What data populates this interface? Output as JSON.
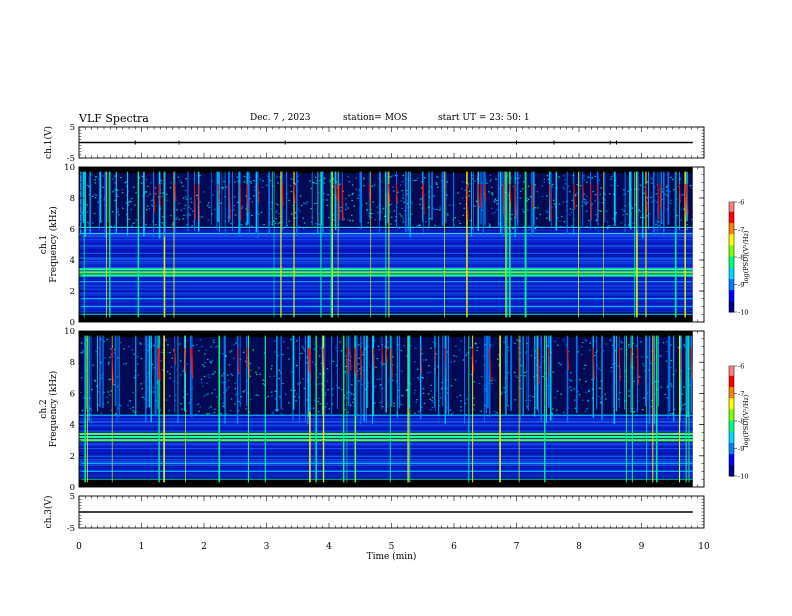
{
  "header": {
    "title": "VLF Spectra",
    "date": "Dec. 7 , 2023",
    "station": "station= MOS",
    "start": "start UT =  23: 50: 1"
  },
  "chart_data": [
    {
      "type": "line",
      "panel": "ch1-waveform",
      "ylabel": "ch.1(V)",
      "ylim": [
        -5,
        5
      ],
      "yticks": [
        5,
        -5
      ],
      "xlim": [
        0,
        10
      ],
      "series": [
        {
          "x": [
            0,
            9.82
          ],
          "y": [
            0,
            0
          ]
        }
      ]
    },
    {
      "type": "heatmap",
      "panel": "ch1-spectrogram",
      "ylabel": "ch.1\nFrequency (kHz)",
      "ylim": [
        0,
        10
      ],
      "yticks": [
        0,
        2,
        4,
        6,
        8,
        10
      ],
      "xlim": [
        0,
        10
      ],
      "data_end_x": 9.82,
      "colorbar": {
        "label": "log(PSD)(V²/Hz)",
        "range": [
          -10,
          -6
        ],
        "ticks": [
          -6,
          -7,
          -8,
          -9,
          -10
        ]
      },
      "bands_khz": [
        0.5,
        1.0,
        1.5,
        2.6,
        3.0,
        3.2,
        3.4,
        5.7,
        6.1
      ],
      "colors": [
        "#000010",
        "#00008b",
        "#0000ff",
        "#007fff",
        "#00d8ff",
        "#00ff80",
        "#80ff00",
        "#ffff00",
        "#ff8000",
        "#ff0000",
        "#ff7f7f",
        "#ffffff"
      ]
    },
    {
      "type": "heatmap",
      "panel": "ch2-spectrogram",
      "ylabel": "ch.2\nFrequency (kHz)",
      "ylim": [
        0,
        10
      ],
      "yticks": [
        0,
        2,
        4,
        6,
        8,
        10
      ],
      "xlim": [
        0,
        10
      ],
      "data_end_x": 9.82,
      "colorbar": {
        "label": "log(PSD)(V²/Hz)",
        "range": [
          -10,
          -6
        ],
        "ticks": [
          -6,
          -7,
          -8,
          -9,
          -10
        ]
      },
      "bands_khz": [
        0.5,
        1.0,
        1.5,
        3.0,
        3.2,
        3.4,
        4.6
      ],
      "colors": [
        "#000010",
        "#00008b",
        "#0000ff",
        "#007fff",
        "#00d8ff",
        "#00ff80",
        "#80ff00",
        "#ffff00",
        "#ff8000",
        "#ff0000",
        "#ff7f7f",
        "#ffffff"
      ]
    },
    {
      "type": "line",
      "panel": "ch3-waveform",
      "ylabel": "ch.3(V)",
      "ylim": [
        -5,
        5
      ],
      "yticks": [
        5,
        -5
      ],
      "xlim": [
        0,
        10
      ],
      "xlabel": "Time (min)",
      "xticks": [
        0,
        1,
        2,
        3,
        4,
        5,
        6,
        7,
        8,
        9,
        10
      ],
      "series": [
        {
          "x": [
            0,
            9.82
          ],
          "y": [
            0,
            0
          ]
        }
      ]
    }
  ]
}
